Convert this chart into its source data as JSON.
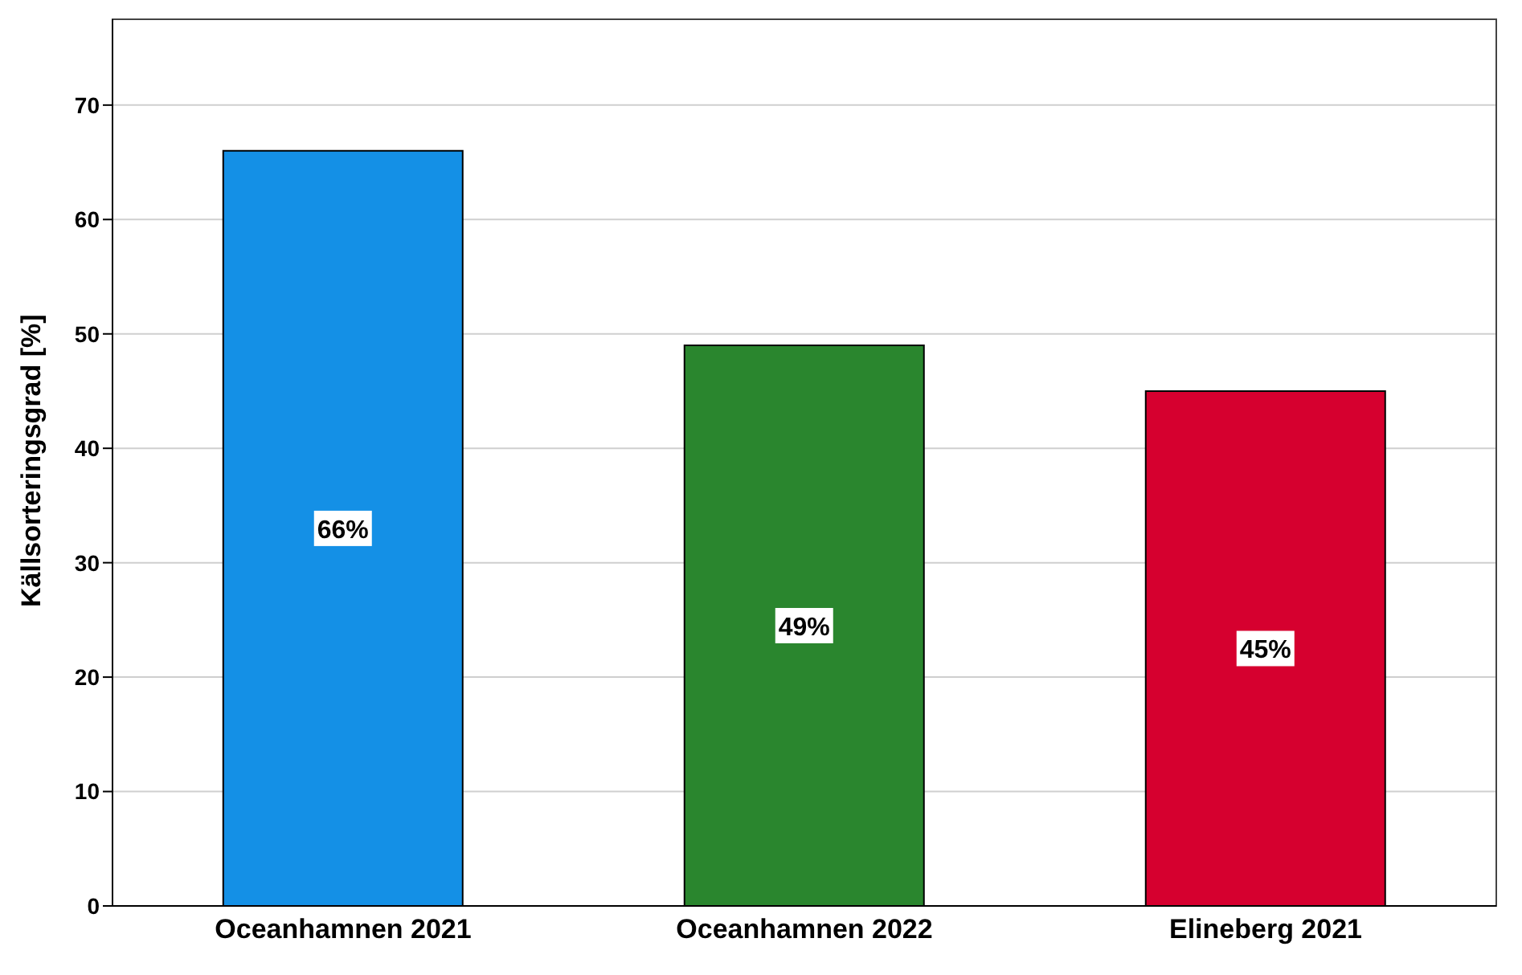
{
  "chart_data": {
    "type": "bar",
    "ylabel": "Källsorteringsgrad [%]",
    "categories": [
      "Oceanhamnen 2021",
      "Oceanhamnen 2022",
      "Elineberg 2021"
    ],
    "values": [
      66,
      49,
      45
    ],
    "colors": [
      "#1490e6",
      "#2a862e",
      "#d6002f"
    ],
    "value_labels": [
      "66%",
      "49%",
      "45%"
    ],
    "ylim": [
      0,
      77.5
    ],
    "yticks": [
      0,
      10,
      20,
      30,
      40,
      50,
      60,
      70
    ],
    "grid": "y"
  }
}
